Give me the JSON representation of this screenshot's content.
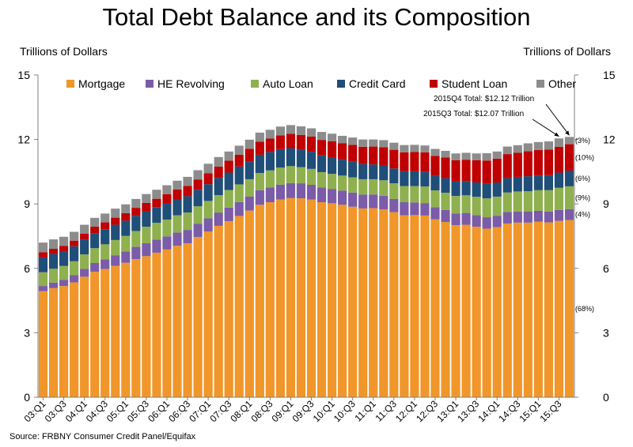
{
  "chart_data": {
    "type": "bar",
    "stacked": true,
    "title": "Total Debt Balance and its Composition",
    "ylabel_left": "Trillions of Dollars",
    "ylabel_right": "Trillions of Dollars",
    "ylim": [
      0,
      15
    ],
    "yticks": [
      "0",
      "3",
      "6",
      "9",
      "12",
      "15"
    ],
    "source": "Source: FRBNY Consumer Credit Panel/Equifax",
    "x_tick_labels": [
      "03:Q1",
      "03:Q3",
      "04:Q1",
      "04:Q3",
      "05:Q1",
      "05:Q3",
      "06:Q1",
      "06:Q3",
      "07:Q1",
      "07:Q3",
      "08:Q1",
      "08:Q3",
      "09:Q1",
      "09:Q3",
      "10:Q1",
      "10:Q3",
      "11:Q1",
      "11:Q3",
      "12:Q1",
      "12:Q3",
      "13:Q1",
      "13:Q3",
      "14:Q1",
      "14:Q3",
      "15:Q1",
      "15:Q3"
    ],
    "categories": [
      "03:Q1",
      "03:Q2",
      "03:Q3",
      "03:Q4",
      "04:Q1",
      "04:Q2",
      "04:Q3",
      "04:Q4",
      "05:Q1",
      "05:Q2",
      "05:Q3",
      "05:Q4",
      "06:Q1",
      "06:Q2",
      "06:Q3",
      "06:Q4",
      "07:Q1",
      "07:Q2",
      "07:Q3",
      "07:Q4",
      "08:Q1",
      "08:Q2",
      "08:Q3",
      "08:Q4",
      "09:Q1",
      "09:Q2",
      "09:Q3",
      "09:Q4",
      "10:Q1",
      "10:Q2",
      "10:Q3",
      "10:Q4",
      "11:Q1",
      "11:Q2",
      "11:Q3",
      "11:Q4",
      "12:Q1",
      "12:Q2",
      "12:Q3",
      "12:Q4",
      "13:Q1",
      "13:Q2",
      "13:Q3",
      "13:Q4",
      "14:Q1",
      "14:Q2",
      "14:Q3",
      "14:Q4",
      "15:Q1",
      "15:Q2",
      "15:Q3",
      "15:Q4"
    ],
    "series": [
      {
        "name": "Mortgage",
        "color": "#F0962A",
        "values": [
          4.94,
          5.08,
          5.18,
          5.35,
          5.61,
          5.84,
          5.97,
          6.12,
          6.26,
          6.43,
          6.57,
          6.73,
          6.88,
          7.05,
          7.17,
          7.46,
          7.72,
          7.98,
          8.2,
          8.44,
          8.69,
          8.96,
          9.08,
          9.21,
          9.27,
          9.26,
          9.2,
          9.08,
          9.03,
          8.96,
          8.87,
          8.79,
          8.8,
          8.75,
          8.62,
          8.47,
          8.48,
          8.46,
          8.28,
          8.16,
          8.01,
          8.03,
          7.94,
          7.85,
          7.92,
          8.09,
          8.13,
          8.13,
          8.17,
          8.14,
          8.21,
          8.25
        ]
      },
      {
        "name": "HE Revolving",
        "color": "#7B5CA8",
        "values": [
          0.24,
          0.26,
          0.29,
          0.33,
          0.37,
          0.41,
          0.45,
          0.48,
          0.53,
          0.57,
          0.6,
          0.61,
          0.61,
          0.62,
          0.62,
          0.61,
          0.61,
          0.62,
          0.63,
          0.65,
          0.66,
          0.68,
          0.69,
          0.69,
          0.7,
          0.7,
          0.69,
          0.68,
          0.67,
          0.66,
          0.66,
          0.65,
          0.64,
          0.63,
          0.61,
          0.61,
          0.59,
          0.58,
          0.57,
          0.56,
          0.55,
          0.55,
          0.54,
          0.53,
          0.53,
          0.53,
          0.52,
          0.51,
          0.51,
          0.51,
          0.51,
          0.51
        ]
      },
      {
        "name": "Auto Loan",
        "color": "#8FB04E",
        "values": [
          0.64,
          0.64,
          0.64,
          0.65,
          0.67,
          0.69,
          0.7,
          0.72,
          0.72,
          0.74,
          0.77,
          0.78,
          0.78,
          0.8,
          0.81,
          0.82,
          0.81,
          0.81,
          0.82,
          0.82,
          0.8,
          0.8,
          0.79,
          0.79,
          0.79,
          0.75,
          0.74,
          0.72,
          0.7,
          0.7,
          0.71,
          0.71,
          0.71,
          0.72,
          0.73,
          0.75,
          0.76,
          0.77,
          0.78,
          0.8,
          0.81,
          0.82,
          0.85,
          0.88,
          0.89,
          0.91,
          0.93,
          0.95,
          0.96,
          0.99,
          1.03,
          1.06
        ]
      },
      {
        "name": "Credit Card",
        "color": "#1F4E79",
        "values": [
          0.69,
          0.69,
          0.69,
          0.7,
          0.7,
          0.7,
          0.7,
          0.71,
          0.71,
          0.71,
          0.72,
          0.73,
          0.74,
          0.74,
          0.76,
          0.77,
          0.78,
          0.8,
          0.81,
          0.83,
          0.84,
          0.85,
          0.86,
          0.86,
          0.84,
          0.82,
          0.8,
          0.78,
          0.76,
          0.74,
          0.73,
          0.71,
          0.69,
          0.69,
          0.69,
          0.7,
          0.69,
          0.68,
          0.67,
          0.68,
          0.67,
          0.67,
          0.67,
          0.68,
          0.66,
          0.67,
          0.68,
          0.7,
          0.68,
          0.7,
          0.71,
          0.73
        ]
      },
      {
        "name": "Student Loan",
        "color": "#C00000",
        "values": [
          0.24,
          0.24,
          0.25,
          0.26,
          0.26,
          0.3,
          0.32,
          0.33,
          0.35,
          0.37,
          0.39,
          0.39,
          0.44,
          0.46,
          0.48,
          0.48,
          0.51,
          0.53,
          0.55,
          0.55,
          0.58,
          0.61,
          0.62,
          0.64,
          0.66,
          0.68,
          0.71,
          0.72,
          0.76,
          0.76,
          0.78,
          0.8,
          0.83,
          0.85,
          0.87,
          0.87,
          0.9,
          0.91,
          0.94,
          0.96,
          0.99,
          0.99,
          1.03,
          1.08,
          1.11,
          1.12,
          1.12,
          1.16,
          1.19,
          1.19,
          1.2,
          1.23
        ]
      },
      {
        "name": "Other",
        "color": "#8C8C8C",
        "values": [
          0.45,
          0.44,
          0.42,
          0.41,
          0.42,
          0.41,
          0.41,
          0.42,
          0.41,
          0.41,
          0.41,
          0.42,
          0.42,
          0.41,
          0.42,
          0.43,
          0.44,
          0.44,
          0.43,
          0.42,
          0.42,
          0.42,
          0.41,
          0.41,
          0.41,
          0.4,
          0.38,
          0.37,
          0.35,
          0.35,
          0.34,
          0.34,
          0.33,
          0.33,
          0.33,
          0.34,
          0.33,
          0.32,
          0.32,
          0.31,
          0.32,
          0.32,
          0.32,
          0.34,
          0.33,
          0.35,
          0.35,
          0.37,
          0.37,
          0.38,
          0.39,
          0.34
        ]
      }
    ],
    "composition_labels": [
      {
        "series": "Other",
        "text": "(3%)"
      },
      {
        "series": "Student Loan",
        "text": "(10%)"
      },
      {
        "series": "Credit Card",
        "text": "(6%)"
      },
      {
        "series": "Auto Loan",
        "text": "(9%)"
      },
      {
        "series": "HE Revolving",
        "text": "(4%)"
      },
      {
        "series": "Mortgage",
        "text": "(68%)"
      }
    ],
    "annotations": [
      {
        "text": "2015Q4 Total: $12.12 Trillion",
        "category": "15:Q4",
        "value": 12.12
      },
      {
        "text": "2015Q3 Total: $12.07 Trillion",
        "category": "15:Q3",
        "value": 12.07
      }
    ]
  }
}
